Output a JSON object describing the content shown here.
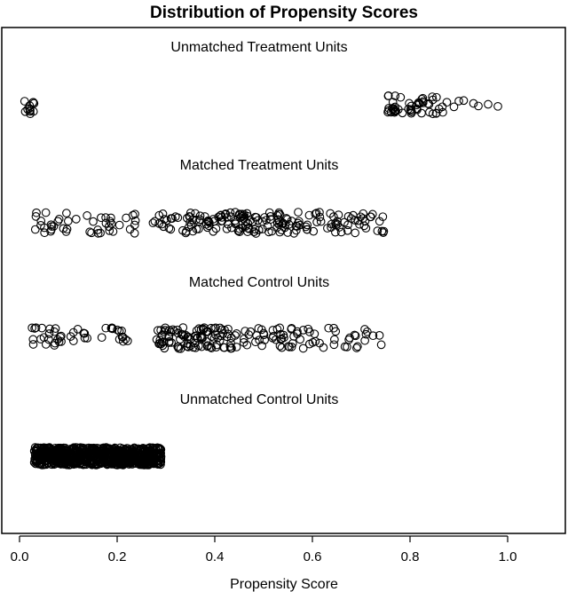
{
  "chart_data": {
    "type": "scatter",
    "title": "Distribution of Propensity Scores",
    "xlabel": "Propensity Score",
    "xlim": [
      -0.05,
      1.12
    ],
    "x_ticks": [
      {
        "value": 0.0,
        "label": "0.0"
      },
      {
        "value": 0.2,
        "label": "0.2"
      },
      {
        "value": 0.4,
        "label": "0.4"
      },
      {
        "value": 0.6,
        "label": "0.6"
      },
      {
        "value": 0.8,
        "label": "0.8"
      },
      {
        "value": 1.0,
        "label": "1.0"
      }
    ],
    "grid": false,
    "jitter": true,
    "groups": [
      {
        "name": "Unmatched Treatment Units",
        "count_estimate": 70,
        "clusters": [
          {
            "min": 0.01,
            "max": 0.03,
            "n": 12
          },
          {
            "min": 0.75,
            "max": 0.88,
            "n": 50
          },
          {
            "x": [
              0.89,
              0.9,
              0.91,
              0.93,
              0.94,
              0.96,
              0.98
            ]
          }
        ]
      },
      {
        "name": "Matched Treatment Units",
        "count_estimate": 220,
        "clusters": [
          {
            "min": 0.02,
            "max": 0.24,
            "n": 45
          },
          {
            "min": 0.26,
            "max": 0.4,
            "n": 45
          },
          {
            "min": 0.4,
            "max": 0.55,
            "n": 80
          },
          {
            "min": 0.55,
            "max": 0.75,
            "n": 60
          }
        ]
      },
      {
        "name": "Matched Control Units",
        "count_estimate": 220,
        "clusters": [
          {
            "min": 0.02,
            "max": 0.24,
            "n": 45
          },
          {
            "min": 0.28,
            "max": 0.42,
            "n": 90
          },
          {
            "min": 0.42,
            "max": 0.6,
            "n": 55
          },
          {
            "min": 0.6,
            "max": 0.75,
            "n": 25
          }
        ]
      },
      {
        "name": "Unmatched Control Units",
        "count_estimate": 800,
        "clusters": [
          {
            "min": 0.03,
            "max": 0.29,
            "n": 800
          }
        ]
      }
    ]
  }
}
